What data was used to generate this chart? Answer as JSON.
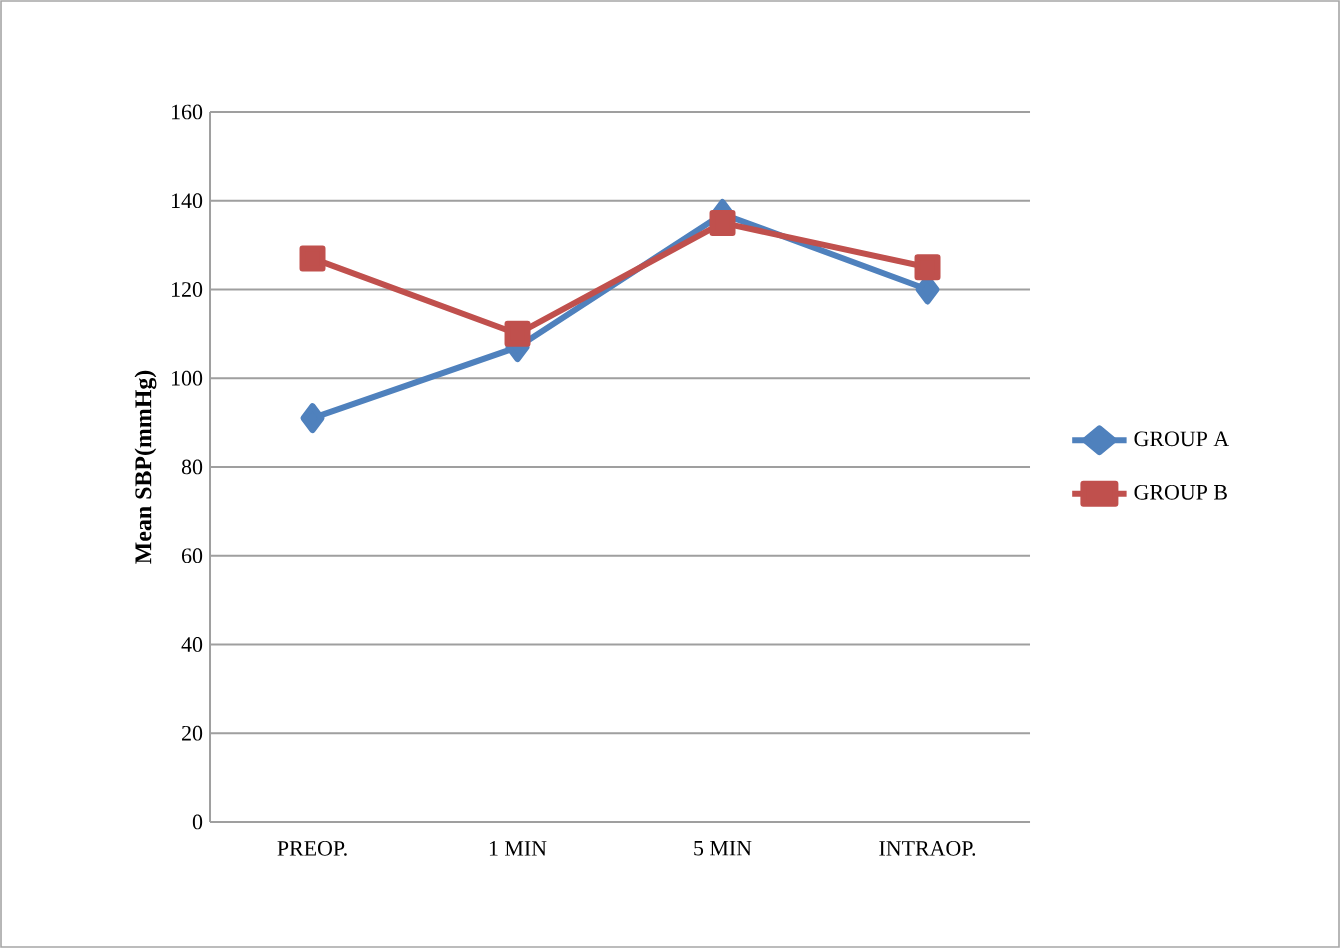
{
  "chart_data": {
    "type": "line",
    "ylabel": "Mean SBP(mmHg)",
    "categories": [
      "PREOP.",
      "1 MIN",
      "5 MIN",
      "INTRAOP."
    ],
    "series": [
      {
        "name": "GROUP A",
        "color": "#4f81bd",
        "marker": "diamond",
        "values": [
          91,
          107,
          137,
          120
        ]
      },
      {
        "name": "GROUP B",
        "color": "#c0504d",
        "marker": "square",
        "values": [
          127,
          110,
          135,
          125
        ]
      }
    ],
    "ylim": [
      0,
      160
    ],
    "yticks": [
      0,
      20,
      40,
      60,
      80,
      100,
      120,
      140,
      160
    ],
    "grid": "y",
    "legend": "right"
  }
}
